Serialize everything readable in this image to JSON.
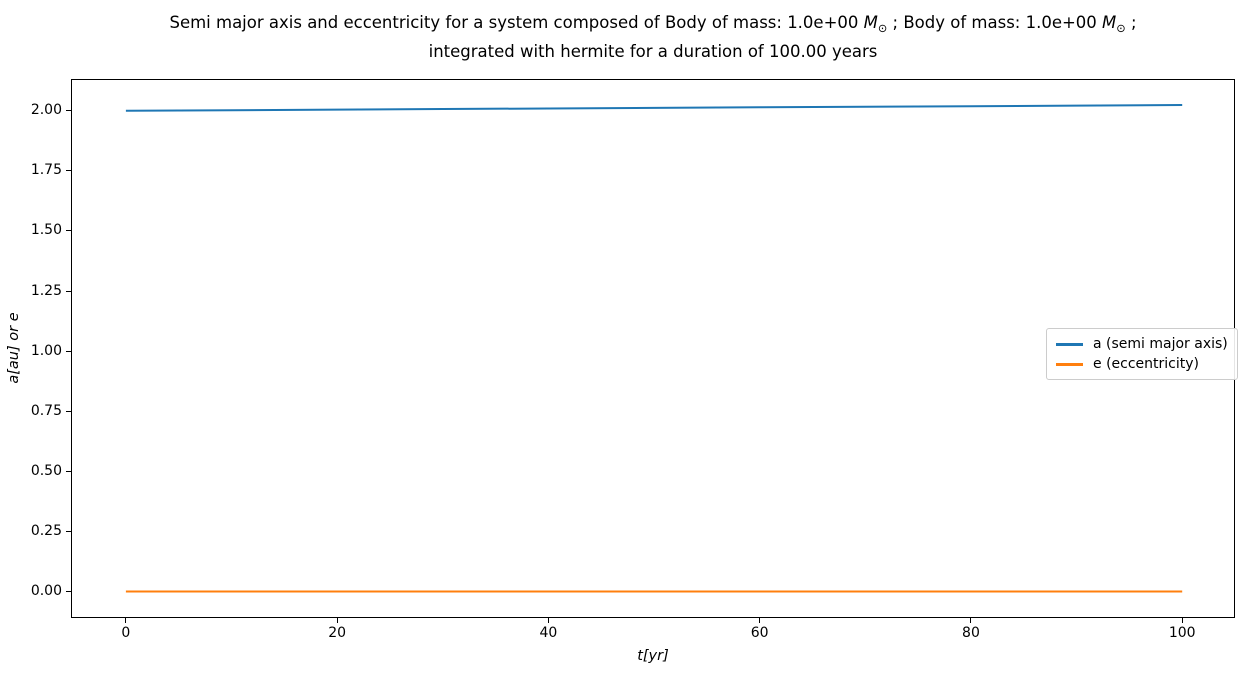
{
  "title": {
    "line1_segments": [
      {
        "text": "Semi major axis and eccentricity for a system composed of Body of mass: 1.0e+00 ",
        "style": "normal"
      },
      {
        "text": "M",
        "style": "italic"
      },
      {
        "text": "⊙",
        "style": "sub"
      },
      {
        "text": " ; Body of mass: 1.0e+00 ",
        "style": "normal"
      },
      {
        "text": "M",
        "style": "italic"
      },
      {
        "text": "⊙",
        "style": "sub"
      },
      {
        "text": " ;",
        "style": "normal"
      }
    ],
    "line2": "integrated with hermite for a duration of 100.00 years"
  },
  "chart_data": {
    "type": "line",
    "title": "Semi major axis and eccentricity for a system composed of Body of mass: 1.0e+00 M⊙ ; Body of mass: 1.0e+00 M⊙ ; integrated with hermite for a duration of 100.00 years",
    "xlabel": "t[yr]",
    "ylabel": "a[au] or e",
    "xlim": [
      -5.1,
      104.9
    ],
    "ylim": [
      -0.106,
      2.128
    ],
    "xticks": [
      0,
      20,
      40,
      60,
      80,
      100
    ],
    "xtick_labels": [
      "0",
      "20",
      "40",
      "60",
      "80",
      "100"
    ],
    "yticks": [
      0.0,
      0.25,
      0.5,
      0.75,
      1.0,
      1.25,
      1.5,
      1.75,
      2.0
    ],
    "ytick_labels": [
      "0.00",
      "0.25",
      "0.50",
      "0.75",
      "1.00",
      "1.25",
      "1.50",
      "1.75",
      "2.00"
    ],
    "x": [
      0,
      10,
      20,
      30,
      40,
      50,
      60,
      70,
      80,
      90,
      100
    ],
    "series": [
      {
        "name": "a (semi major axis)",
        "color": "#1f77b4",
        "values": [
          2.0,
          2.0024,
          2.0048,
          2.0072,
          2.0096,
          2.012,
          2.0144,
          2.0168,
          2.0192,
          2.0216,
          2.024
        ]
      },
      {
        "name": "e (eccentricity)",
        "color": "#ff7f0e",
        "values": [
          0.0,
          0.0,
          0.0,
          0.0,
          0.0,
          0.0,
          0.0,
          0.0,
          0.0,
          0.0,
          0.0
        ]
      }
    ],
    "legend_position": "center right",
    "grid": false
  }
}
